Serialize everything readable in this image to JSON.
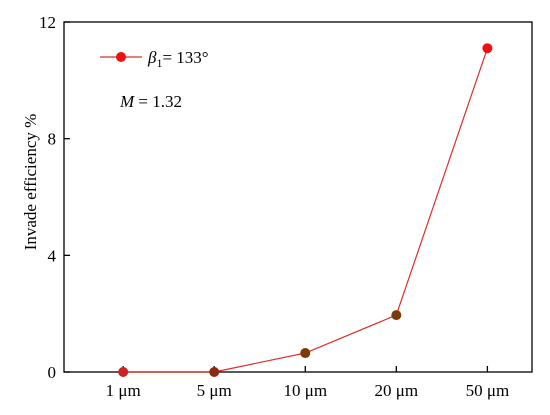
{
  "chart_data": {
    "type": "line",
    "categories": [
      "1 μm",
      "5 μm",
      "10 μm",
      "20 μm",
      "50 μm"
    ],
    "series": [
      {
        "name_parts": {
          "symbol": "β",
          "subscript": "1",
          "rest": "= 133°"
        },
        "values": [
          0.0,
          0.0,
          0.65,
          1.95,
          11.1
        ],
        "line_color": "#d9302a",
        "marker_colors": [
          "#cc2222",
          "#8b2a10",
          "#7a3b0c",
          "#7a3b0c",
          "#ee1111"
        ]
      }
    ],
    "ylabel": "Invade efficiency %",
    "xlabel": "",
    "ylim": [
      0,
      12
    ],
    "yticks": [
      0,
      4,
      8,
      12
    ],
    "annotation": {
      "symbol": "M",
      "rest": " = 1.32"
    },
    "legend_position": "top-left",
    "grid": false
  }
}
